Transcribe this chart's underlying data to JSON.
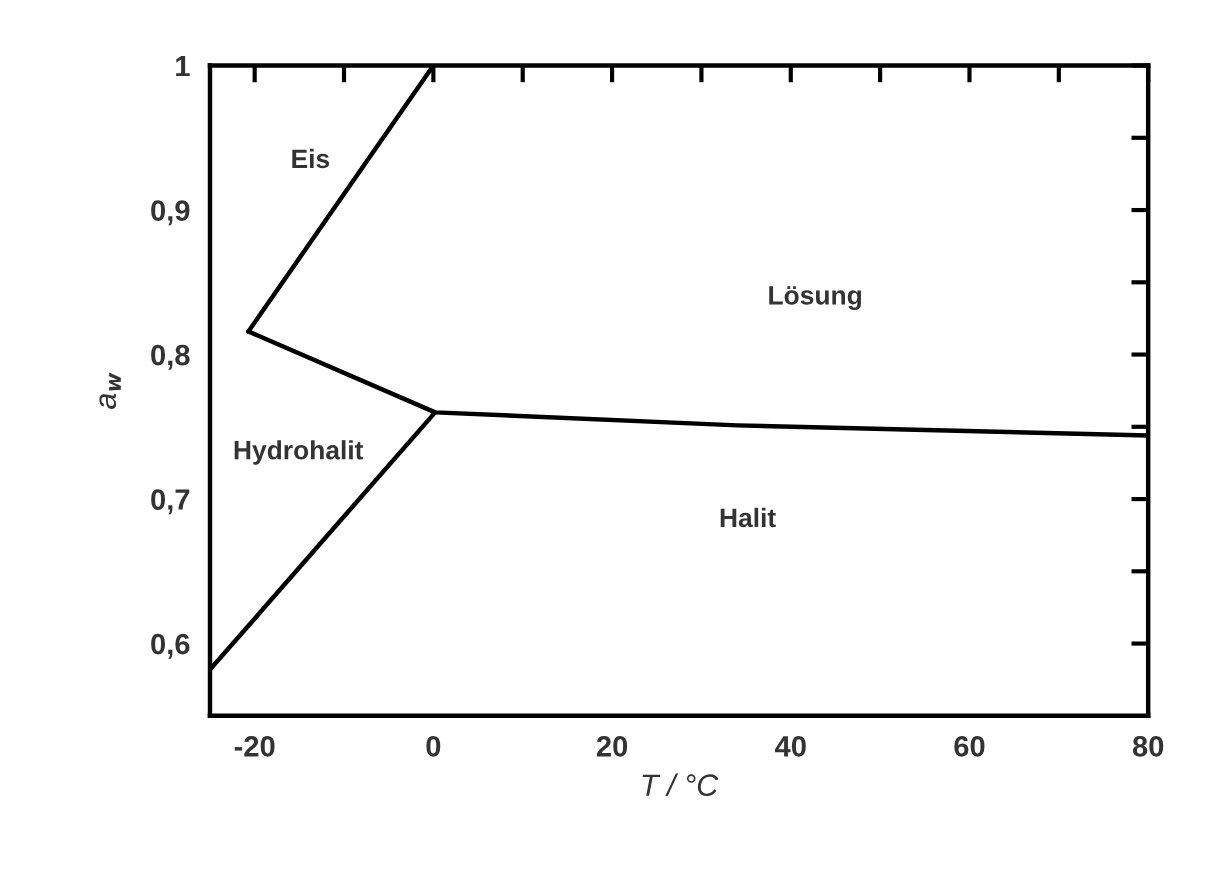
{
  "chart_data": {
    "type": "line",
    "xlabel": "T / °C",
    "ylabel": "a$_{w}$",
    "series": [
      {
        "color": "#000000",
        "x": [
          -20.7,
          0
        ],
        "values": [
          0.816,
          1.0
        ]
      },
      {
        "color": "#000000",
        "x": [
          -20.7,
          0.2,
          34,
          80
        ],
        "values": [
          0.816,
          0.76,
          0.751,
          0.744
        ]
      },
      {
        "color": "#000000",
        "x": [
          -25,
          0.2
        ],
        "values": [
          0.582,
          0.76
        ]
      }
    ],
    "annotations": [
      "Eis",
      "Lösung",
      "Hydrohalit",
      "Halit"
    ],
    "xlim": [
      -25,
      80
    ],
    "xticks": [
      -20,
      {
        "value": -10,
        "label": null
      },
      0,
      {
        "value": 10,
        "label": null
      },
      20,
      {
        "value": 30,
        "label": null
      },
      40,
      {
        "value": 50,
        "label": null
      },
      60,
      {
        "value": 70,
        "label": null
      },
      80
    ],
    "ylim": [
      0.55,
      1.0
    ],
    "yticks": [
      {
        "value": 0.6,
        "label": "0,6"
      },
      {
        "value": 0.65,
        "label": null
      },
      {
        "value": 0.7,
        "label": "0,7"
      },
      {
        "value": 0.75,
        "label": null
      },
      {
        "value": 0.8,
        "label": "0,8"
      },
      {
        "value": 0.85,
        "label": null
      },
      {
        "value": 0.9,
        "label": "0,9"
      },
      {
        "value": 0.95,
        "label": null
      },
      1
    ],
    "grid": false,
    "legend": false,
    "marker": "none",
    "line_style": "solid"
  }
}
